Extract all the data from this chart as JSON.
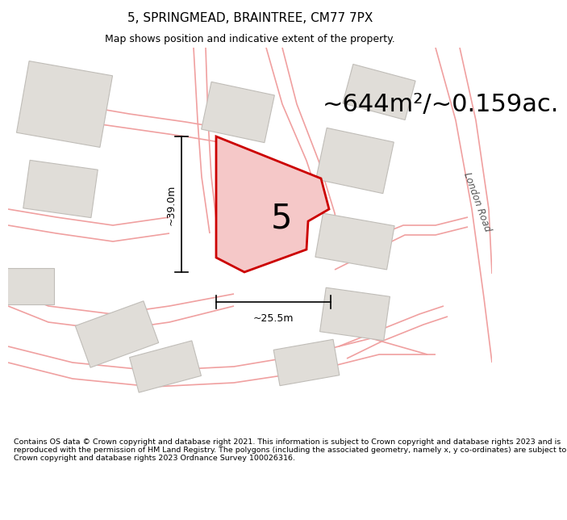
{
  "title": "5, SPRINGMEAD, BRAINTREE, CM77 7PX",
  "subtitle": "Map shows position and indicative extent of the property.",
  "area_text": "~644m²/~0.159ac.",
  "plot_label": "5",
  "dim_width": "~25.5m",
  "dim_height": "~39.0m",
  "footer": "Contains OS data © Crown copyright and database right 2021. This information is subject to Crown copyright and database rights 2023 and is reproduced with the permission of HM Land Registry. The polygons (including the associated geometry, namely x, y co-ordinates) are subject to Crown copyright and database rights 2023 Ordnance Survey 100026316.",
  "bg_color": "#ffffff",
  "map_bg": "#ffffff",
  "plot_fill": "#f5c8c8",
  "plot_edge": "#cc0000",
  "road_color": "#f0b0b0",
  "building_fill": "#e0ddd8",
  "building_edge": "#c0bdb8",
  "road_label": "London Road",
  "title_fontsize": 11,
  "subtitle_fontsize": 9,
  "area_fontsize": 22,
  "footer_fontsize": 6.8
}
